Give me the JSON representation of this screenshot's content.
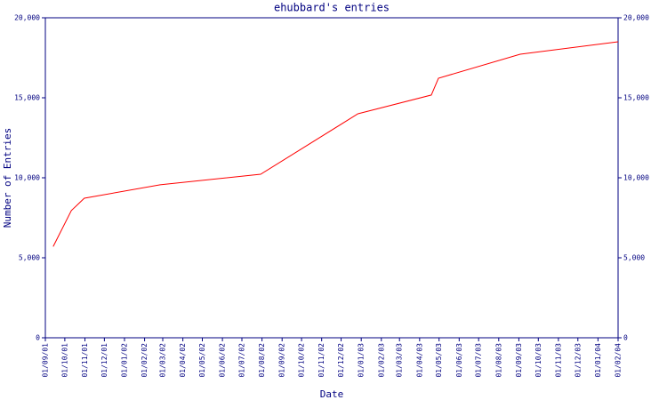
{
  "chart_data": {
    "type": "line",
    "title": "ehubbard's entries",
    "x_label": "Date",
    "y_label": "Number of Entries",
    "x": [
      "2001-09-13",
      "2001-10-11",
      "2001-10-31",
      "2002-02-25",
      "2002-07-30",
      "2002-12-27",
      "2003-04-19",
      "2003-04-30",
      "2003-09-03",
      "2004-02-01"
    ],
    "series": [
      {
        "name": "entries",
        "color": "#ff0000",
        "values": [
          5700,
          7950,
          8720,
          9560,
          10220,
          14000,
          15170,
          16220,
          17720,
          18500
        ]
      }
    ],
    "xlim": [
      "2001-09-01",
      "2004-02-01"
    ],
    "xticks": [
      {
        "value": "2001-09-01",
        "label": "01/09/01"
      },
      {
        "value": "2001-10-01",
        "label": "01/10/01"
      },
      {
        "value": "2001-11-01",
        "label": "01/11/01"
      },
      {
        "value": "2001-12-01",
        "label": "01/12/01"
      },
      {
        "value": "2002-01-01",
        "label": "01/01/02"
      },
      {
        "value": "2002-02-01",
        "label": "01/02/02"
      },
      {
        "value": "2002-03-01",
        "label": "01/03/02"
      },
      {
        "value": "2002-04-01",
        "label": "01/04/02"
      },
      {
        "value": "2002-05-01",
        "label": "01/05/02"
      },
      {
        "value": "2002-06-01",
        "label": "01/06/02"
      },
      {
        "value": "2002-07-01",
        "label": "01/07/02"
      },
      {
        "value": "2002-08-01",
        "label": "01/08/02"
      },
      {
        "value": "2002-09-01",
        "label": "01/09/02"
      },
      {
        "value": "2002-10-01",
        "label": "01/10/02"
      },
      {
        "value": "2002-11-01",
        "label": "01/11/02"
      },
      {
        "value": "2002-12-01",
        "label": "01/12/02"
      },
      {
        "value": "2003-01-01",
        "label": "01/01/03"
      },
      {
        "value": "2003-02-01",
        "label": "01/02/03"
      },
      {
        "value": "2003-03-01",
        "label": "01/03/03"
      },
      {
        "value": "2003-04-01",
        "label": "01/04/03"
      },
      {
        "value": "2003-05-01",
        "label": "01/05/03"
      },
      {
        "value": "2003-06-01",
        "label": "01/06/03"
      },
      {
        "value": "2003-07-01",
        "label": "01/07/03"
      },
      {
        "value": "2003-08-01",
        "label": "01/08/03"
      },
      {
        "value": "2003-09-01",
        "label": "01/09/03"
      },
      {
        "value": "2003-10-01",
        "label": "01/10/03"
      },
      {
        "value": "2003-11-01",
        "label": "01/11/03"
      },
      {
        "value": "2003-12-01",
        "label": "01/12/03"
      },
      {
        "value": "2004-01-01",
        "label": "01/01/04"
      },
      {
        "value": "2004-02-01",
        "label": "01/02/04"
      }
    ],
    "ylim": [
      0,
      20000
    ],
    "yticks": [
      0,
      {
        "value": 5000,
        "label": "5,000"
      },
      {
        "value": 10000,
        "label": "10,000"
      },
      {
        "value": 15000,
        "label": "15,000"
      },
      {
        "value": 20000,
        "label": "20,000"
      }
    ],
    "y2lim": [
      0,
      20000
    ],
    "y2ticks": [
      0,
      {
        "value": 5000,
        "label": "5,000"
      },
      {
        "value": 10000,
        "label": "10,000"
      },
      {
        "value": 15000,
        "label": "15,000"
      },
      {
        "value": 20000,
        "label": "20,000"
      }
    ]
  }
}
